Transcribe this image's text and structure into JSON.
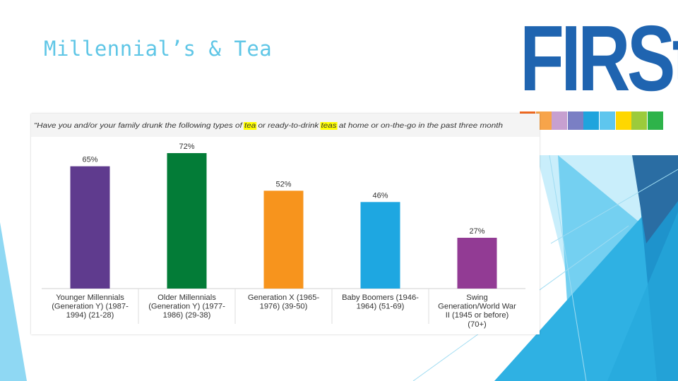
{
  "slide": {
    "title": "Millennial’s & Tea"
  },
  "logo": {
    "text": "FIRSt",
    "color": "#1f64b0",
    "stripe_colors": [
      "#f26b21",
      "#f7a44a",
      "#c7a0d0",
      "#7a7fc4",
      "#1fa4dd",
      "#5ec6ee",
      "#ffd700",
      "#9ccb3b",
      "#2eb34a"
    ]
  },
  "chart_data": {
    "type": "bar",
    "title": "\"Have you and/or your family drunk the following types of tea or ready-to-drink teas at home or on-the-go in the past three month",
    "title_highlight_color": "#ffff00",
    "categories": [
      "Younger Millennials (Generation Y) (1987-1994) (21-28)",
      "Older Millennials (Generation Y) (1977-1986) (29-38)",
      "Generation X (1965-1976) (39-50)",
      "Baby Boomers (1946-1964) (51-69)",
      "Swing Generation/World War II (1945 or before) (70+)"
    ],
    "category_lines": [
      [
        "Younger Millennials",
        "(Generation Y) (1987-",
        "1994) (21-28)"
      ],
      [
        "Older Millennials",
        "(Generation Y) (1977-",
        "1986) (29-38)"
      ],
      [
        "Generation X (1965-",
        "1976) (39-50)"
      ],
      [
        "Baby Boomers (1946-",
        "1964) (51-69)"
      ],
      [
        "Swing",
        "Generation/World War",
        "II (1945 or before)",
        "(70+)"
      ]
    ],
    "values": [
      65,
      72,
      52,
      46,
      27
    ],
    "value_labels": [
      "65%",
      "72%",
      "52%",
      "46%",
      "27%"
    ],
    "colors": [
      "#5f3b8e",
      "#037c37",
      "#f7941d",
      "#1ea7e1",
      "#923b94"
    ],
    "ylim": [
      0,
      100
    ],
    "grid": false,
    "xlabel": "",
    "ylabel": ""
  }
}
